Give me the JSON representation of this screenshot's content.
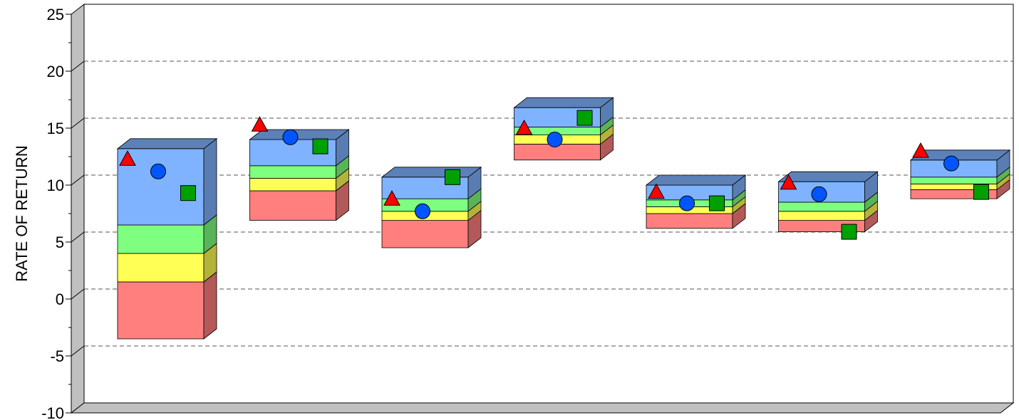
{
  "chart_data": {
    "type": "floating-stacked-bar-3d",
    "title": "",
    "xlabel": "",
    "ylabel": "RATE OF RETURN",
    "ylim": [
      -10,
      25
    ],
    "yticks": [
      -10,
      -5,
      0,
      5,
      10,
      15,
      20,
      25
    ],
    "grid": true,
    "legend": "none",
    "band_colors": [
      "#ff7f7f",
      "#ffff55",
      "#7fff7f",
      "#7fb3ff"
    ],
    "marker_colors": {
      "triangle": "#ff0000",
      "circle": "#0055ff",
      "square": "#00a000"
    },
    "groups": [
      {
        "bands": [
          -3.5,
          1.5,
          4.0,
          6.5,
          13.2
        ],
        "triangle": 12.3,
        "circle": 11.2,
        "square": 9.3
      },
      {
        "bands": [
          6.9,
          9.5,
          10.6,
          11.7,
          14.0
        ],
        "triangle": 15.3,
        "circle": 14.2,
        "square": 13.4
      },
      {
        "bands": [
          4.5,
          6.9,
          7.7,
          8.8,
          10.7
        ],
        "triangle": 8.8,
        "circle": 7.7,
        "square": 10.7
      },
      {
        "bands": [
          12.2,
          13.6,
          14.4,
          15.1,
          16.8
        ],
        "triangle": 15.0,
        "circle": 14.0,
        "square": 15.9
      },
      {
        "bands": [
          6.2,
          7.5,
          8.1,
          8.7,
          10.0
        ],
        "triangle": 9.4,
        "circle": 8.4,
        "square": 8.4
      },
      {
        "bands": [
          5.9,
          6.9,
          7.7,
          8.5,
          10.3
        ],
        "triangle": 10.2,
        "circle": 9.2,
        "square": 5.9
      },
      {
        "bands": [
          8.8,
          9.6,
          10.1,
          10.7,
          12.2
        ],
        "triangle": 13.0,
        "circle": 11.9,
        "square": 9.4
      }
    ]
  }
}
